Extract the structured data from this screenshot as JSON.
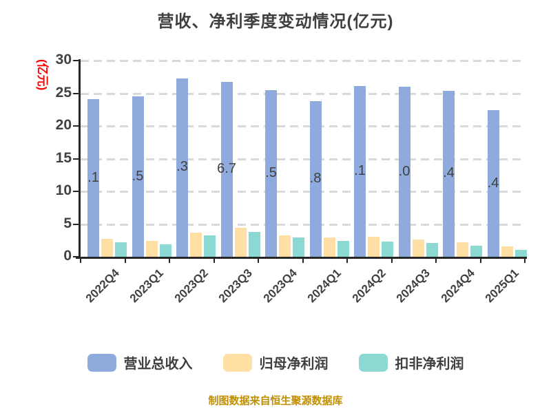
{
  "title": "营收、净利季度变动情况(亿元)",
  "y_axis_unit_label": "(亿元)",
  "footer": "制图数据来自恒生聚源数据库",
  "colors": {
    "revenue_bar": "#8faadc",
    "net_profit_bar": "#ffdfa3",
    "deducted_profit_bar": "#8cd9d3",
    "grid": "#d9d9d9",
    "axis": "#262626",
    "text": "#3f3f3f",
    "unit_label": "#fe0000",
    "footer": "#bf8f00"
  },
  "chart_data": {
    "type": "bar",
    "title": "营收、净利季度变动情况(亿元)",
    "ylabel": "(亿元)",
    "xlabel": "",
    "categories": [
      "2022Q4",
      "2023Q1",
      "2023Q2",
      "2023Q3",
      "2023Q4",
      "2024Q1",
      "2024Q2",
      "2024Q3",
      "2024Q4",
      "2025Q1"
    ],
    "series": [
      {
        "name": "营业总收入",
        "color": "#8faadc",
        "values": [
          24.1,
          24.5,
          27.3,
          26.7,
          25.5,
          23.8,
          26.1,
          26.0,
          25.4,
          22.4
        ],
        "labels_visible": [
          ".1",
          ".5",
          ".3",
          "6.7",
          ".5",
          ".8",
          ".1",
          ".0",
          ".4",
          ".4"
        ]
      },
      {
        "name": "归母净利润",
        "color": "#ffdfa3",
        "values": [
          2.7,
          2.4,
          3.7,
          4.4,
          3.3,
          2.9,
          3.1,
          2.6,
          2.2,
          1.6
        ]
      },
      {
        "name": "扣非净利润",
        "color": "#8cd9d3",
        "values": [
          2.2,
          1.9,
          3.3,
          3.8,
          2.9,
          2.4,
          2.3,
          2.1,
          1.7,
          1.1
        ]
      }
    ],
    "ylim": [
      0,
      30
    ],
    "yticks": [
      0,
      5,
      10,
      15,
      20,
      25,
      30
    ],
    "grid": "horizontal-dashed",
    "legend_position": "bottom"
  }
}
